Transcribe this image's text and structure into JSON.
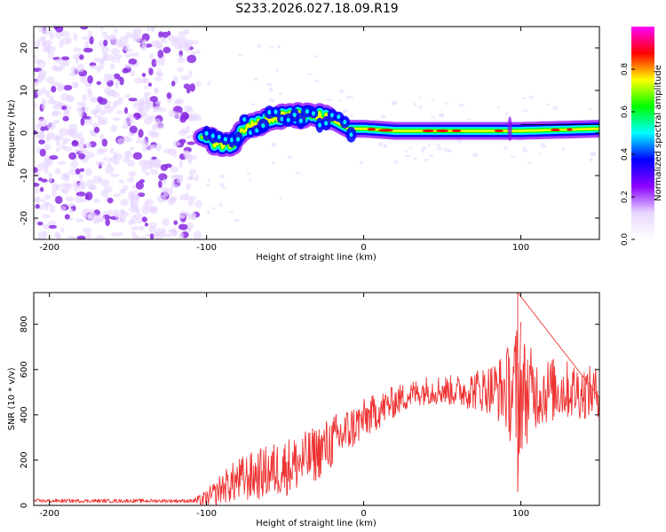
{
  "figure_title": "S233.2026.027.18.09.R19",
  "colors": {
    "scatter": "#8a2be2",
    "snr_line": "#ee3333",
    "colormap": [
      "#ffffff",
      "#e8d6ff",
      "#8b00ff",
      "#0000ff",
      "#00ffff",
      "#00ff00",
      "#ffff00",
      "#ff0000",
      "#ff00ff"
    ]
  },
  "chart_data": [
    {
      "type": "heatmap",
      "name": "spectrogram",
      "xlabel": "Height of straight line (km)",
      "ylabel": "Frequency (Hz)",
      "xlim": [
        -210,
        150
      ],
      "ylim": [
        -25,
        25
      ],
      "xticks": [
        -200,
        -100,
        0,
        100
      ],
      "xtick_labels": [
        "-200",
        "-100",
        "0",
        "100"
      ],
      "yticks": [
        -20,
        -10,
        0,
        10,
        20
      ],
      "ytick_labels": [
        "-20",
        "-10",
        "0",
        "10",
        "20"
      ],
      "noise_region_x": [
        -210,
        -105
      ],
      "ridge": [
        [
          -103,
          -1
        ],
        [
          -95,
          -2
        ],
        [
          -85,
          -3
        ],
        [
          -78,
          1
        ],
        [
          -70,
          2
        ],
        [
          -60,
          3
        ],
        [
          -50,
          4
        ],
        [
          -40,
          4
        ],
        [
          -30,
          4
        ],
        [
          -20,
          3
        ],
        [
          -10,
          1
        ],
        [
          0,
          1
        ],
        [
          20,
          0.5
        ],
        [
          60,
          0.5
        ],
        [
          100,
          0.5
        ],
        [
          150,
          1
        ]
      ],
      "colorbar": {
        "label": "Normalized spectral amplitude",
        "range": [
          0,
          1
        ],
        "ticks": [
          0.0,
          0.2,
          0.4,
          0.6,
          0.8
        ],
        "tick_labels": [
          "0.0",
          "0.2",
          "0.4",
          "0.6",
          "0.8"
        ]
      }
    },
    {
      "type": "line",
      "name": "snr",
      "xlabel": "Height of straight line (km)",
      "ylabel": "SNR (10 * v/v)",
      "xlim": [
        -210,
        150
      ],
      "ylim": [
        0,
        940
      ],
      "xticks": [
        -200,
        -100,
        0,
        100
      ],
      "xtick_labels": [
        "-200",
        "-100",
        "0",
        "100"
      ],
      "yticks": [
        0,
        200,
        400,
        600,
        800
      ],
      "ytick_labels": [
        "0",
        "200",
        "400",
        "600",
        "800"
      ],
      "envelope": [
        [
          -210,
          20
        ],
        [
          -105,
          20
        ],
        [
          -100,
          30
        ],
        [
          -95,
          50
        ],
        [
          -90,
          80
        ],
        [
          -80,
          110
        ],
        [
          -70,
          130
        ],
        [
          -60,
          150
        ],
        [
          -50,
          170
        ],
        [
          -40,
          190
        ],
        [
          -30,
          230
        ],
        [
          -20,
          280
        ],
        [
          -10,
          330
        ],
        [
          0,
          380
        ],
        [
          10,
          420
        ],
        [
          20,
          460
        ],
        [
          30,
          490
        ],
        [
          40,
          510
        ],
        [
          50,
          510
        ],
        [
          60,
          505
        ],
        [
          70,
          510
        ],
        [
          80,
          515
        ],
        [
          90,
          510
        ],
        [
          100,
          500
        ],
        [
          110,
          500
        ],
        [
          120,
          510
        ],
        [
          130,
          510
        ],
        [
          140,
          500
        ],
        [
          150,
          500
        ]
      ],
      "noise_amplitude": [
        [
          -210,
          8
        ],
        [
          -110,
          8
        ],
        [
          -100,
          40
        ],
        [
          -80,
          100
        ],
        [
          -50,
          130
        ],
        [
          -20,
          120
        ],
        [
          0,
          90
        ],
        [
          30,
          60
        ],
        [
          60,
          70
        ],
        [
          80,
          110
        ],
        [
          90,
          170
        ],
        [
          95,
          260
        ],
        [
          98,
          320
        ],
        [
          101,
          260
        ],
        [
          110,
          160
        ],
        [
          130,
          130
        ],
        [
          150,
          110
        ]
      ],
      "notable_points": [
        [
          98,
          940
        ],
        [
          98,
          60
        ],
        [
          100,
          810
        ]
      ]
    }
  ]
}
